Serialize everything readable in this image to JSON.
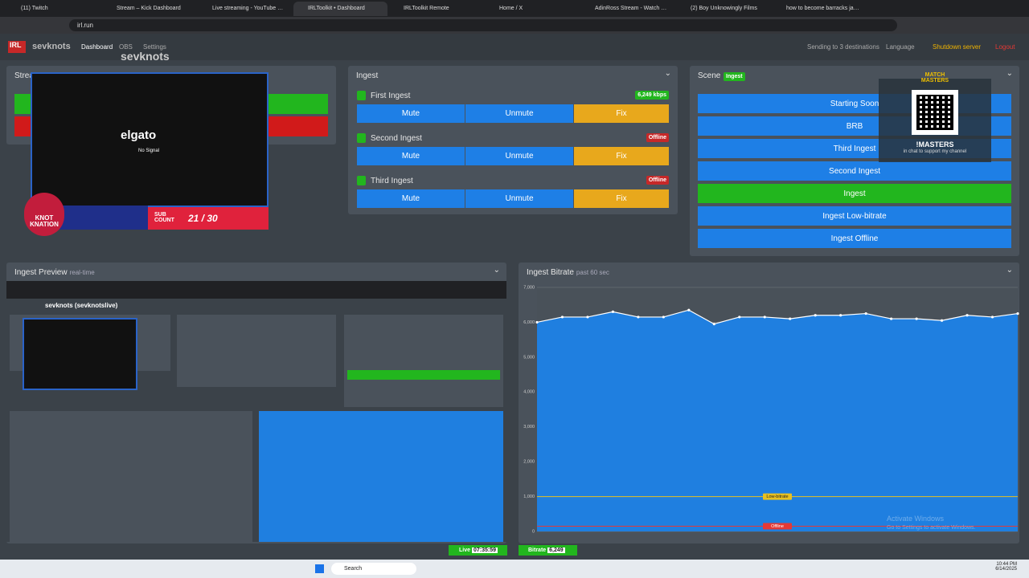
{
  "browser": {
    "tabs": [
      "(11) Twitch",
      "Stream – Kick Dashboard",
      "Live streaming - YouTube Studi",
      "IRLToolkit • Dashboard",
      "IRLToolkit Remote",
      "Home / X",
      "AdinRoss Stream - Watch Live o",
      "(2) Boy Unknowingly Films",
      "how to become barracks janito"
    ],
    "address": "irl.run"
  },
  "navbar": {
    "brand": "sevknots",
    "links": [
      "Dashboard",
      "OBS",
      "Settings"
    ],
    "status": "Sending to 3 destinations",
    "language": "Language",
    "shutdown": "Shutdown server",
    "logout": "Logout"
  },
  "overlay": {
    "channel": "sevknots",
    "camera_brand": "elgato",
    "camera_status": "No Signal",
    "sub_label": "SUB COUNT",
    "sub_count": "21 / 30",
    "team": "KNOT KNATION",
    "promo_brand": "MATCH MASTERS",
    "promo_command": "!MASTERS",
    "promo_text": "in chat to support my channel"
  },
  "stream_panel": {
    "title": "Stream"
  },
  "ingest_panel": {
    "title": "Ingest",
    "buttons": [
      "Mute",
      "Unmute",
      "Fix"
    ],
    "ingests": [
      {
        "name": "First Ingest",
        "status": "6,249 kbps"
      },
      {
        "name": "Second Ingest",
        "status": "Offline"
      },
      {
        "name": "Third Ingest",
        "status": "Offline"
      }
    ]
  },
  "scene_panel": {
    "title": "Scene",
    "active_badge": "Ingest",
    "scenes": [
      "Starting Soon",
      "BRB",
      "Third Ingest",
      "Second Ingest",
      "Ingest",
      "Ingest Low-bitrate",
      "Ingest Offline"
    ]
  },
  "preview_panel": {
    "title": "Ingest Preview",
    "subtitle": "real-time",
    "preview_title": "sevknots (sevknotslive)"
  },
  "bitrate_panel": {
    "title": "Ingest Bitrate",
    "subtitle": "past 60 sec",
    "chart": {
      "type": "line",
      "values": [
        6000,
        6150,
        6150,
        6300,
        6150,
        6150,
        6350,
        5950,
        6150,
        6150,
        6100,
        6200,
        6200,
        6250,
        6100,
        6100,
        6050,
        6200,
        6150,
        6250
      ],
      "ylim": [
        0,
        7000
      ],
      "yticks": [
        0,
        {
          "value": 1000,
          "label": "1,000"
        },
        {
          "value": 2000,
          "label": "2,000"
        },
        {
          "value": 3000,
          "label": "3,000"
        },
        {
          "value": 4000,
          "label": "4,000"
        },
        {
          "value": 5000,
          "label": "5,000"
        },
        {
          "value": 6000,
          "label": "6,000"
        },
        {
          "value": 7000,
          "label": "7,000"
        }
      ],
      "thresholds": [
        {
          "label": "Low-bitrate",
          "value": 1000
        },
        {
          "label": "Offline",
          "value": 150
        }
      ]
    }
  },
  "footer": {
    "live_label": "Live",
    "live_time": "07:35:59",
    "bitrate_label": "Bitrate",
    "bitrate_value": "6,249"
  },
  "watermark": {
    "title": "Activate Windows",
    "text": "Go to Settings to activate Windows."
  },
  "taskbar": {
    "search": "Search",
    "time": "10:44 PM",
    "date": "6/14/2025"
  }
}
